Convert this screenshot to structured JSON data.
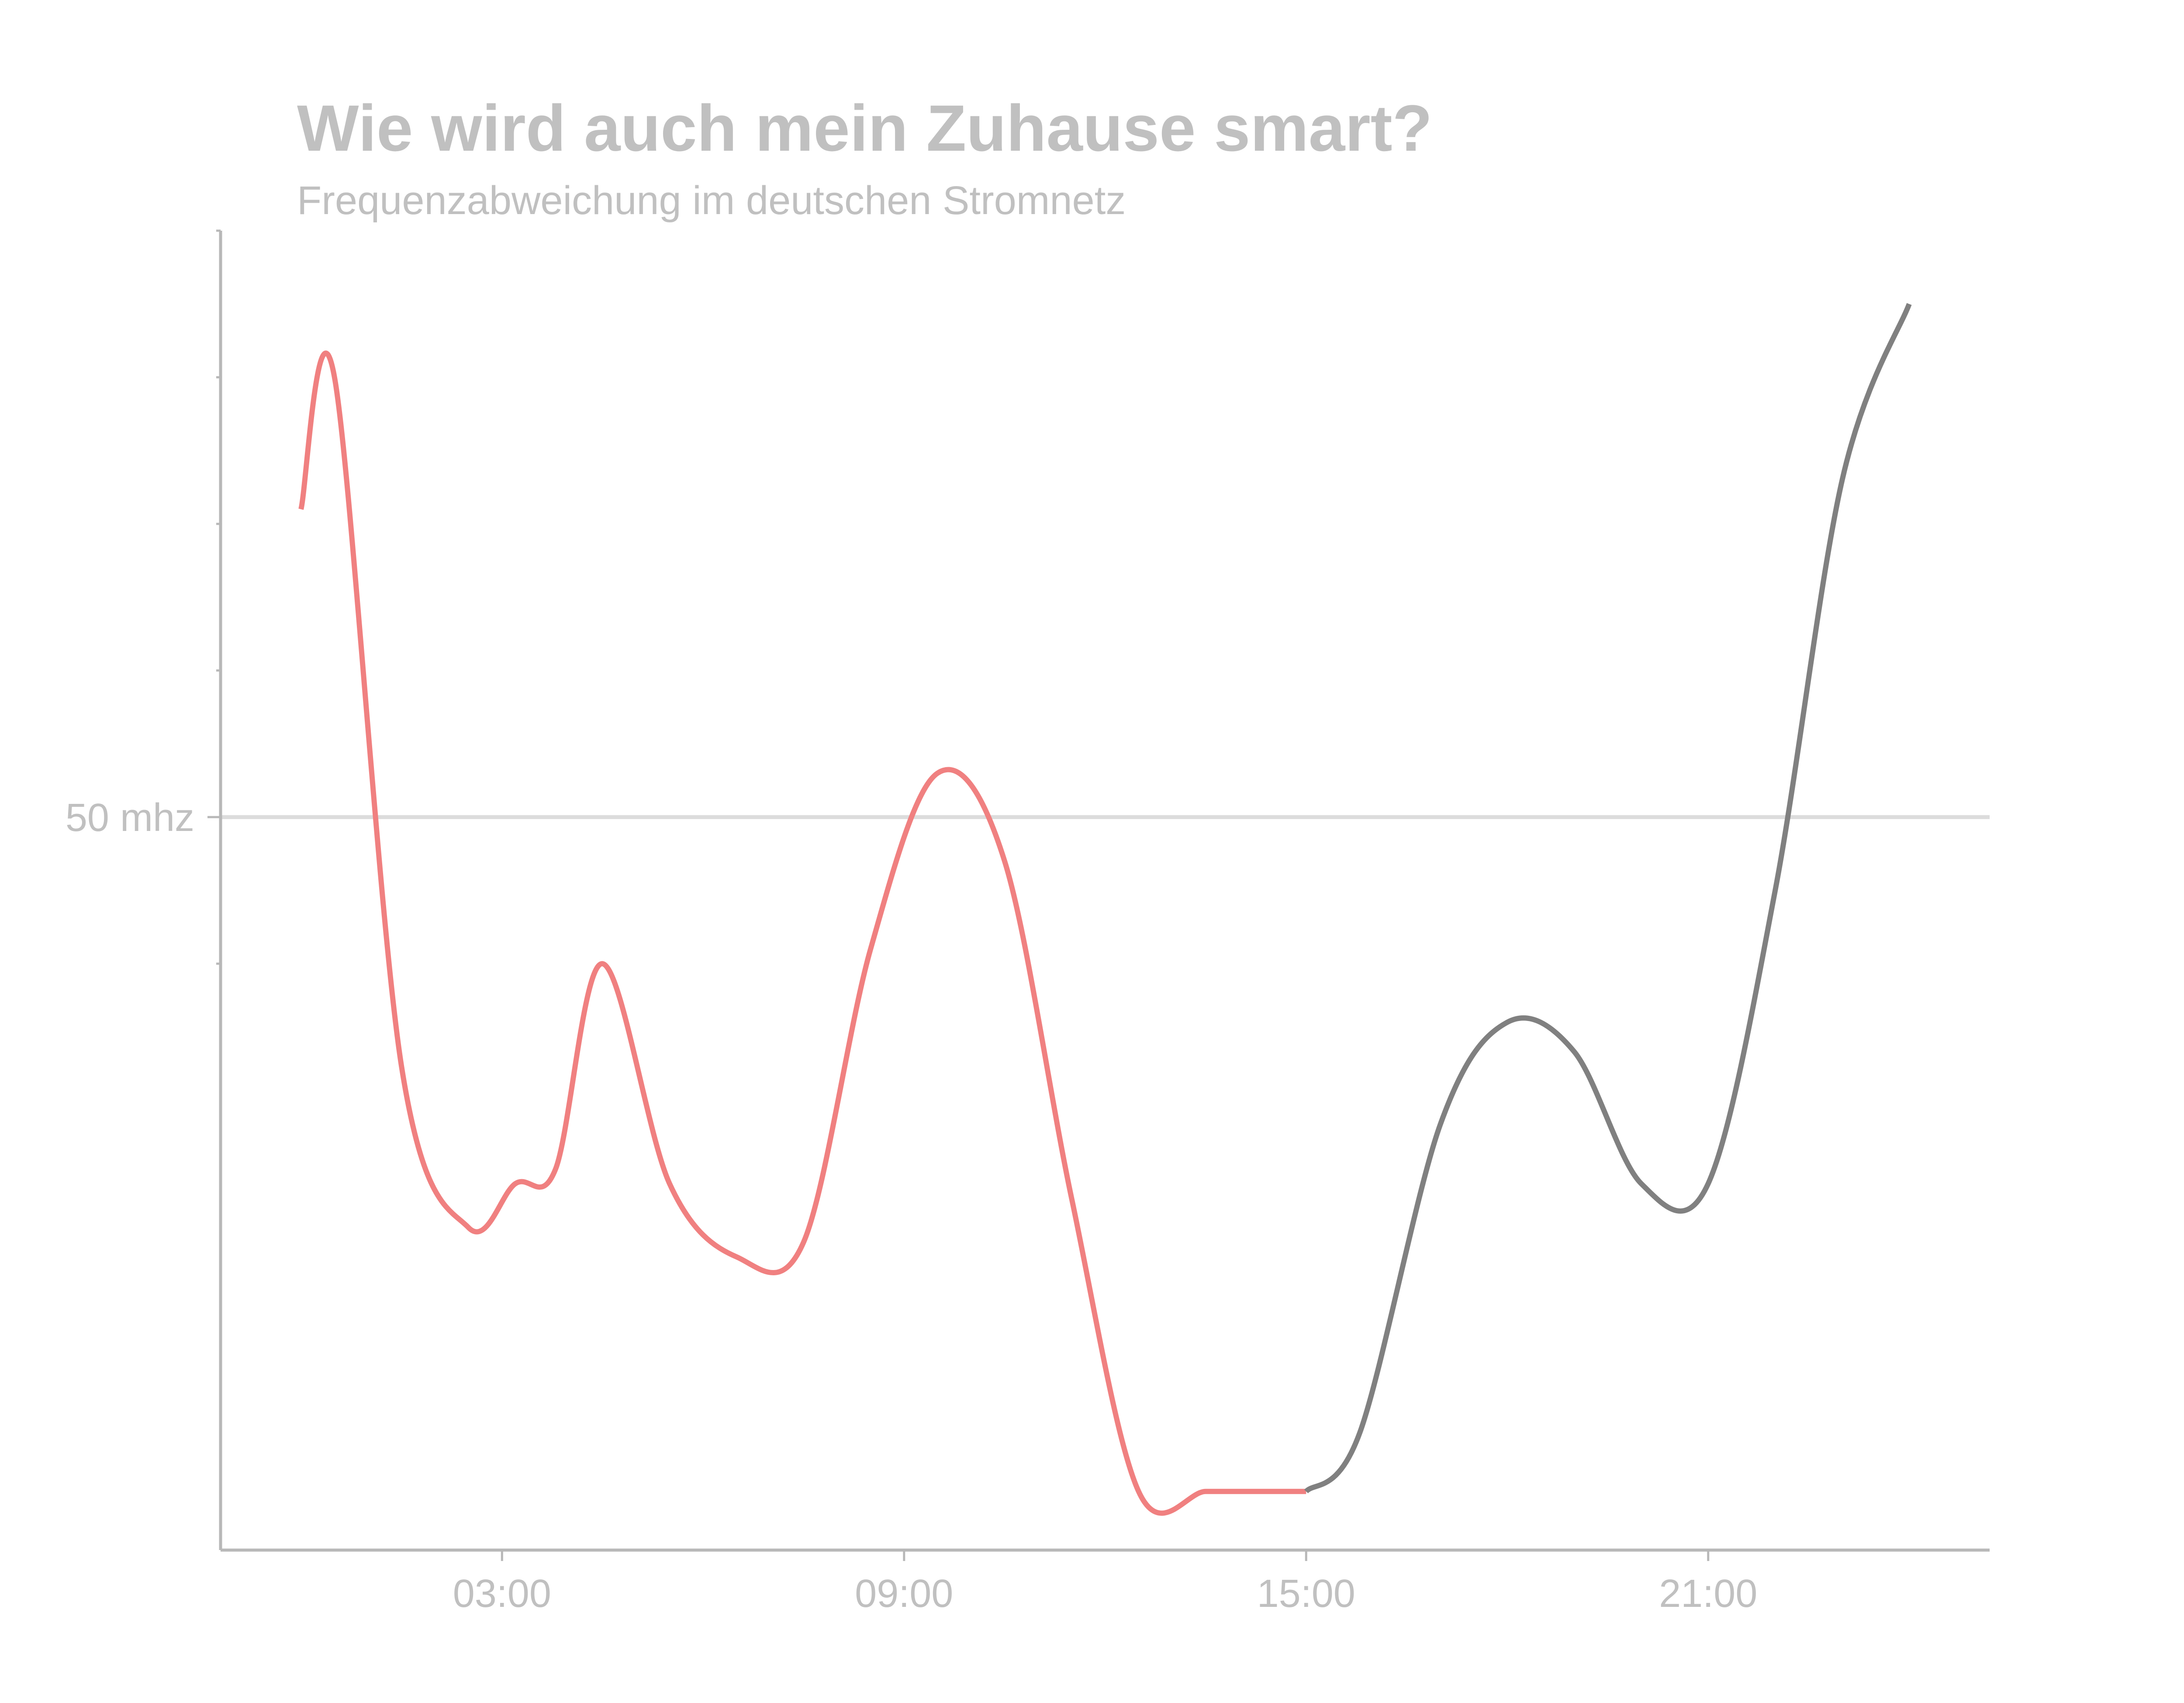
{
  "chart_data": {
    "type": "line",
    "title": "Wie wird auch mein Zuhause smart?",
    "subtitle": "Frequenzabweichung im deutschen Stromnetz",
    "xlabel": "",
    "ylabel": "",
    "x_tick_labels": [
      "03:00",
      "09:00",
      "15:00",
      "21:00"
    ],
    "x_tick_values": [
      3,
      9,
      15,
      21
    ],
    "xlim": [
      -1.2,
      25.2
    ],
    "y_ref_value": 50,
    "y_ref_label": "50 mhz",
    "y_minor_ticks": [
      49.9,
      50.1,
      50.2,
      50.3,
      50.4
    ],
    "ylim": [
      49.5,
      50.4
    ],
    "grid": false,
    "legend": "none",
    "colors": {
      "past": "#f08080",
      "forecast": "#808080"
    },
    "split_x": 15,
    "x": [
      0,
      0.5,
      1.5,
      2.5,
      3.2,
      3.8,
      4.5,
      5.5,
      6.5,
      7.5,
      8.5,
      9.5,
      10.5,
      11.5,
      12.5,
      13.5,
      14.2,
      15,
      15.8,
      17,
      18,
      19,
      20,
      21,
      22,
      23,
      24
    ],
    "values": [
      50.21,
      50.3,
      49.83,
      49.72,
      49.75,
      49.76,
      49.9,
      49.75,
      49.7,
      49.71,
      49.91,
      50.03,
      49.97,
      49.74,
      49.54,
      49.54,
      49.54,
      49.54,
      49.58,
      49.79,
      49.86,
      49.84,
      49.75,
      49.75,
      49.95,
      50.23,
      50.35
    ]
  }
}
